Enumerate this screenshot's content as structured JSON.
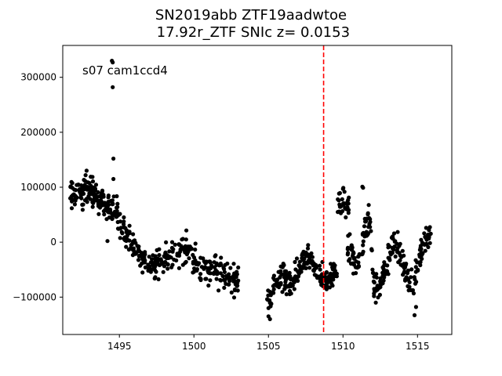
{
  "chart_data": {
    "type": "scatter",
    "title_line1": "SN2019abb  ZTF19aadwtoe",
    "title_line2": " 17.92r_ZTF SNIc z= 0.0153",
    "annotation": "s07 cam1ccd4",
    "xlim": [
      1491.2,
      1517.3
    ],
    "ylim": [
      -168000,
      358000
    ],
    "xticks": [
      1495,
      1500,
      1505,
      1510,
      1515
    ],
    "xtick_labels": [
      "1495",
      "1500",
      "1505",
      "1510",
      "1515"
    ],
    "yticks": [
      -100000,
      0,
      100000,
      200000,
      300000
    ],
    "ytick_labels": [
      "−100000",
      "0",
      "100000",
      "200000",
      "300000"
    ],
    "vline": {
      "x": 1508.7,
      "color": "#ff0000",
      "style": "dashed"
    },
    "marker_color": "#000000",
    "grid": false,
    "segments": [
      {
        "x": [
          1491.7,
          1492.0,
          1492.3,
          1492.6,
          1492.9,
          1493.2,
          1493.5,
          1493.8,
          1494.1,
          1494.4,
          1494.7,
          1494.9
        ],
        "y": [
          90000,
          88000,
          85000,
          90000,
          95000,
          88000,
          80000,
          75000,
          72000,
          65000,
          60000,
          50000
        ],
        "spread": 13000,
        "n": 160
      },
      {
        "x": [
          1494.9,
          1495.2,
          1495.5,
          1495.8,
          1496.1,
          1496.4,
          1496.7,
          1497.0,
          1497.3,
          1497.6
        ],
        "y": [
          45000,
          25000,
          10000,
          0,
          -15000,
          -25000,
          -32000,
          -36000,
          -38000,
          -40000
        ],
        "spread": 12000,
        "n": 110
      },
      {
        "x": [
          1497.6,
          1498.0,
          1498.4,
          1498.8,
          1499.2,
          1499.6,
          1500.0,
          1500.4,
          1500.8,
          1501.2,
          1501.6,
          1502.0,
          1502.4,
          1502.8,
          1503.0
        ],
        "y": [
          -38000,
          -32000,
          -25000,
          -22000,
          -18000,
          -15000,
          -30000,
          -45000,
          -48000,
          -50000,
          -52000,
          -58000,
          -62000,
          -66000,
          -70000
        ],
        "spread": 14000,
        "n": 190
      },
      {
        "x": [
          1504.9,
          1505.2,
          1505.5,
          1505.8,
          1506.1,
          1506.4,
          1506.7,
          1507.0,
          1507.3,
          1507.6,
          1507.9,
          1508.2,
          1508.5,
          1508.8,
          1509.1,
          1509.4,
          1509.6
        ],
        "y": [
          -110000,
          -95000,
          -80000,
          -70000,
          -68000,
          -72000,
          -70000,
          -55000,
          -35000,
          -28000,
          -40000,
          -55000,
          -62000,
          -68000,
          -65000,
          -55000,
          -45000
        ],
        "spread": 12000,
        "n": 220
      },
      {
        "x": [
          1509.6,
          1509.8,
          1510.0,
          1510.2,
          1510.4
        ],
        "y": [
          60000,
          72000,
          75000,
          68000,
          62000
        ],
        "spread": 10000,
        "n": 30
      },
      {
        "x": [
          1510.3,
          1510.6,
          1510.9,
          1511.2,
          1511.5,
          1511.8,
          1512.1,
          1512.4,
          1512.7,
          1513.0,
          1513.3,
          1513.6,
          1513.9,
          1514.2,
          1514.5,
          1514.8,
          1515.1,
          1515.4,
          1515.7,
          1515.9
        ],
        "y": [
          -10000,
          -25000,
          -40000,
          -30000,
          35000,
          40000,
          -85000,
          -90000,
          -60000,
          -30000,
          -10000,
          -5000,
          -20000,
          -55000,
          -75000,
          -65000,
          -30000,
          0,
          10000,
          5000
        ],
        "spread": 13000,
        "n": 230
      }
    ],
    "outliers": [
      {
        "x": 1494.5,
        "y": 330000
      },
      {
        "x": 1494.55,
        "y": 327000
      },
      {
        "x": 1494.55,
        "y": 282000
      },
      {
        "x": 1494.6,
        "y": 152000
      },
      {
        "x": 1494.6,
        "y": 115000
      },
      {
        "x": 1510.0,
        "y": 97000
      },
      {
        "x": 1511.3,
        "y": 101000
      },
      {
        "x": 1511.35,
        "y": 99000
      },
      {
        "x": 1505.0,
        "y": -135000
      },
      {
        "x": 1505.1,
        "y": -140000
      },
      {
        "x": 1505.0,
        "y": -120000
      },
      {
        "x": 1514.8,
        "y": -133000
      },
      {
        "x": 1514.9,
        "y": -118000
      },
      {
        "x": 1512.2,
        "y": -110000
      },
      {
        "x": 1494.2,
        "y": 2000
      },
      {
        "x": 1492.8,
        "y": 130000
      }
    ]
  }
}
